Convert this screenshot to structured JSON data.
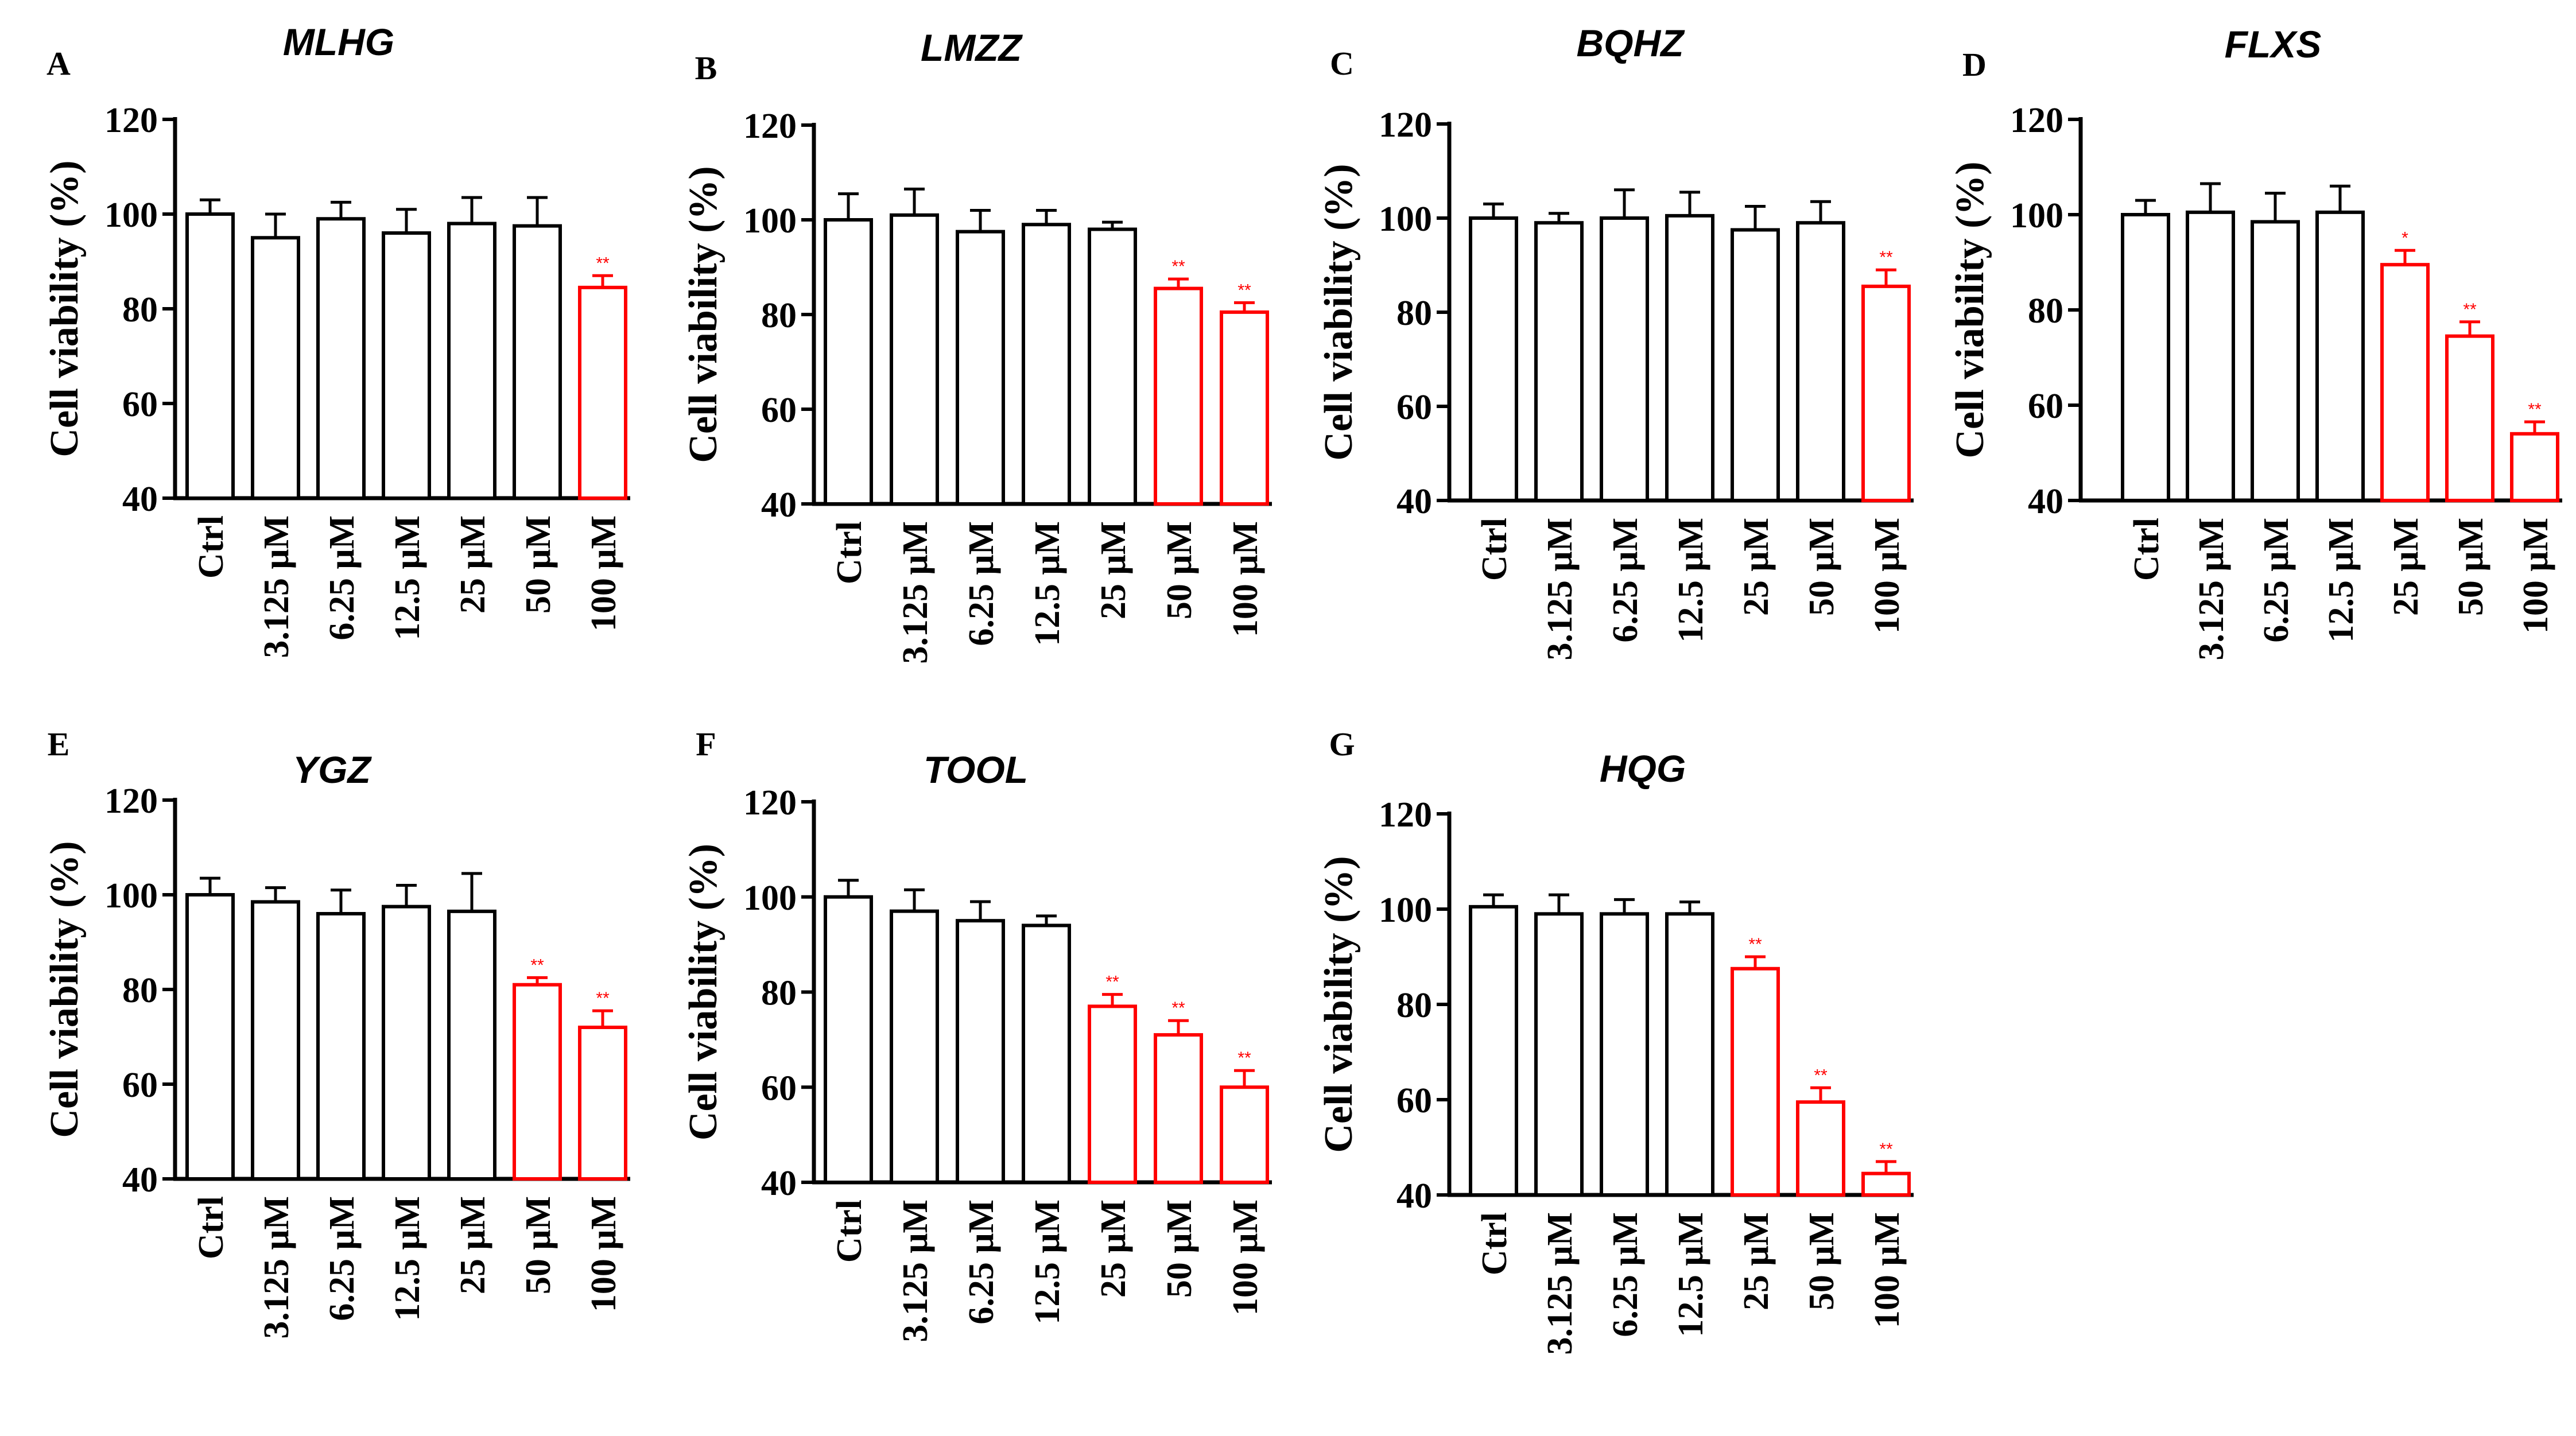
{
  "colors": {
    "normal": "#000000",
    "significant": "#ff0000",
    "axis": "#000000"
  },
  "chart_data": [
    {
      "type": "bar",
      "panel": "A",
      "title": "MLHG",
      "ylabel": "Cell viability (%)",
      "xlabel": "",
      "ylim": [
        40,
        120
      ],
      "yticks": [
        "40",
        "60",
        "80",
        "100",
        "120"
      ],
      "categories": [
        "Ctrl",
        "3.125 μM",
        "6.25 μM",
        "12.5 μM",
        "25 μM",
        "50 μM",
        "100 μM"
      ],
      "values": [
        100,
        95,
        99,
        96,
        98,
        97.5,
        84.5
      ],
      "errors": [
        3,
        5,
        3.5,
        5,
        5.5,
        6,
        2.5
      ],
      "significance": [
        "",
        "",
        "",
        "",
        "",
        "",
        "**"
      ]
    },
    {
      "type": "bar",
      "panel": "B",
      "title": "LMZZ",
      "ylabel": "Cell viability (%)",
      "xlabel": "",
      "ylim": [
        40,
        120
      ],
      "yticks": [
        "40",
        "60",
        "80",
        "100",
        "120"
      ],
      "categories": [
        "Ctrl",
        "3.125 μM",
        "6.25 μM",
        "12.5 μM",
        "25 μM",
        "50 μM",
        "100 μM"
      ],
      "values": [
        100,
        101,
        97.5,
        99,
        98,
        85.5,
        80.5
      ],
      "errors": [
        5.5,
        5.5,
        4.5,
        3,
        1.5,
        2,
        2
      ],
      "significance": [
        "",
        "",
        "",
        "",
        "",
        "**",
        "**"
      ]
    },
    {
      "type": "bar",
      "panel": "C",
      "title": "BQHZ",
      "ylabel": "Cell viability (%)",
      "xlabel": "",
      "ylim": [
        40,
        120
      ],
      "yticks": [
        "40",
        "60",
        "80",
        "100",
        "120"
      ],
      "categories": [
        "Ctrl",
        "3.125 μM",
        "6.25 μM",
        "12.5 μM",
        "25 μM",
        "50 μM",
        "100 μM"
      ],
      "values": [
        100,
        99,
        100,
        100.5,
        97.5,
        99,
        85.5
      ],
      "errors": [
        3,
        2,
        6,
        5,
        5,
        4.5,
        3.5
      ],
      "significance": [
        "",
        "",
        "",
        "",
        "",
        "",
        "**"
      ]
    },
    {
      "type": "bar",
      "panel": "D",
      "title": "FLXS",
      "ylabel": "Cell viability (%)",
      "xlabel": "",
      "ylim": [
        40,
        120
      ],
      "yticks": [
        "40",
        "60",
        "80",
        "100",
        "120"
      ],
      "categories": [
        "Ctrl",
        "3.125 μM",
        "6.25 μM",
        "12.5 μM",
        "25 μM",
        "50 μM",
        "100 μM"
      ],
      "values": [
        100,
        100.5,
        98.5,
        100.5,
        89.5,
        74.5,
        54
      ],
      "errors": [
        3,
        6,
        6,
        5.5,
        3,
        3,
        2.5
      ],
      "significance": [
        "",
        "",
        "",
        "",
        "*",
        "**",
        "**"
      ]
    },
    {
      "type": "bar",
      "panel": "E",
      "title": "YGZ",
      "ylabel": "Cell viability (%)",
      "xlabel": "",
      "ylim": [
        40,
        120
      ],
      "yticks": [
        "40",
        "60",
        "80",
        "100",
        "120"
      ],
      "categories": [
        "Ctrl",
        "3.125 μM",
        "6.25 μM",
        "12.5 μM",
        "25 μM",
        "50 μM",
        "100 μM"
      ],
      "values": [
        100,
        98.5,
        96,
        97.5,
        96.5,
        81,
        72
      ],
      "errors": [
        3.5,
        3,
        5,
        4.5,
        8,
        1.5,
        3.5
      ],
      "significance": [
        "",
        "",
        "",
        "",
        "",
        "**",
        "**"
      ]
    },
    {
      "type": "bar",
      "panel": "F",
      "title": "TOOL",
      "ylabel": "Cell viability (%)",
      "xlabel": "",
      "ylim": [
        40,
        120
      ],
      "yticks": [
        "40",
        "60",
        "80",
        "100",
        "120"
      ],
      "categories": [
        "Ctrl",
        "3.125 μM",
        "6.25 μM",
        "12.5 μM",
        "25 μM",
        "50 μM",
        "100 μM"
      ],
      "values": [
        100,
        97,
        95,
        94,
        77,
        71,
        60
      ],
      "errors": [
        3.5,
        4.5,
        4,
        2,
        2.5,
        3,
        3.5
      ],
      "significance": [
        "",
        "",
        "",
        "",
        "**",
        "**",
        "**"
      ]
    },
    {
      "type": "bar",
      "panel": "G",
      "title": "HQG",
      "ylabel": "Cell viability (%)",
      "xlabel": "",
      "ylim": [
        40,
        120
      ],
      "yticks": [
        "40",
        "60",
        "80",
        "100",
        "120"
      ],
      "categories": [
        "Ctrl",
        "3.125 μM",
        "6.25 μM",
        "12.5 μM",
        "25 μM",
        "50 μM",
        "100 μM"
      ],
      "values": [
        100.5,
        99,
        99,
        99,
        87.5,
        59.5,
        44.5
      ],
      "errors": [
        2.5,
        4,
        3,
        2.5,
        2.5,
        3,
        2.5
      ],
      "significance": [
        "",
        "",
        "",
        "",
        "**",
        "**",
        "**"
      ]
    }
  ]
}
